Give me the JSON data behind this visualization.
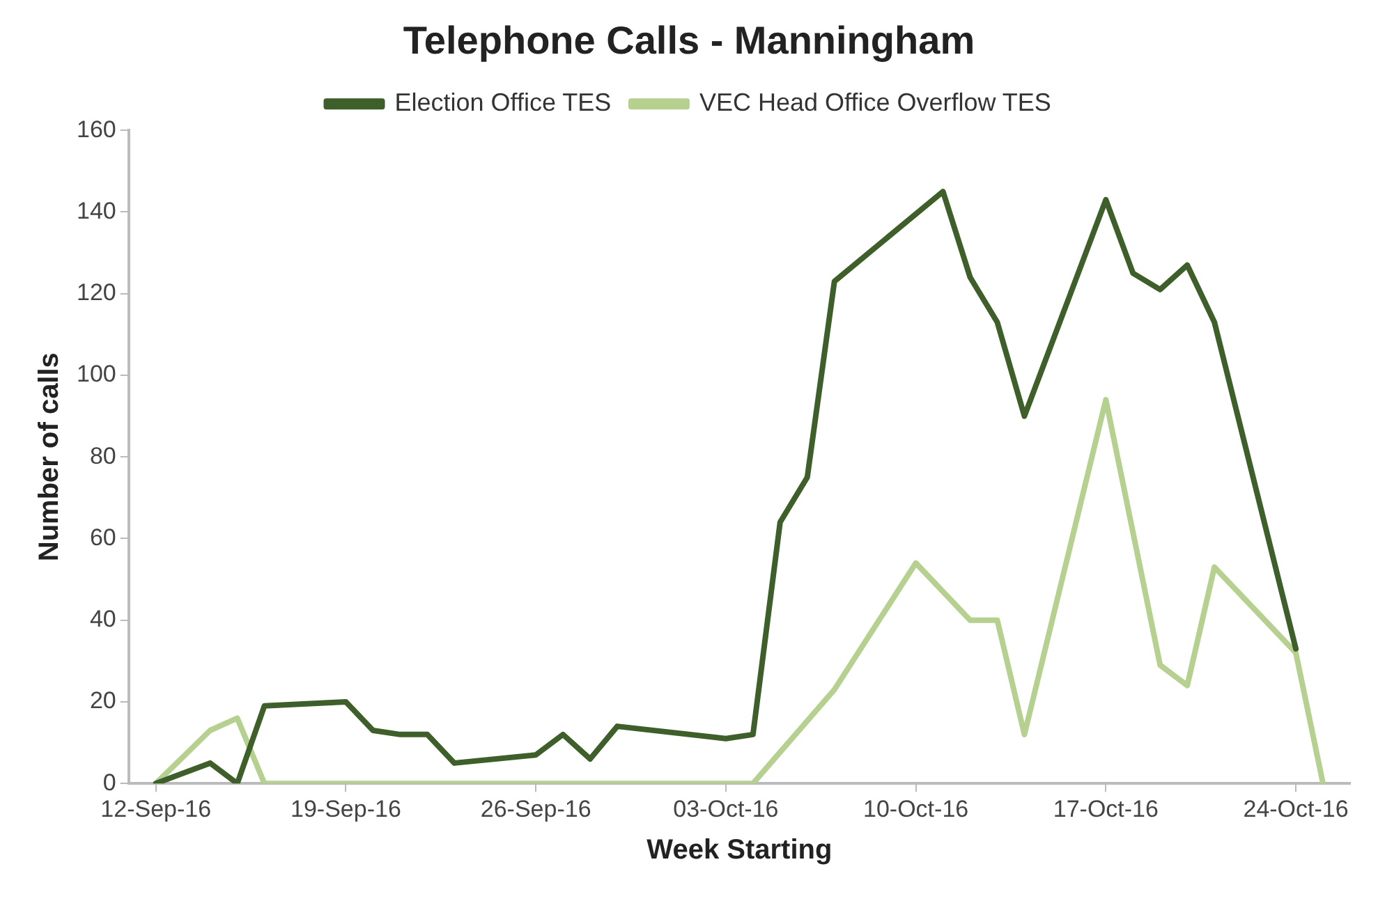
{
  "chart_data": {
    "type": "line",
    "title": "Telephone Calls - Manningham",
    "xlabel": "Week Starting",
    "ylabel": "Number of calls",
    "xlim": [
      "--09-11",
      "--10-26"
    ],
    "xticks": [
      {
        "value": "--09-12",
        "label": "12-Sep-16"
      },
      {
        "value": "--09-19",
        "label": "19-Sep-16"
      },
      {
        "value": "--09-26",
        "label": "26-Sep-16"
      },
      {
        "value": "--10-03",
        "label": "03-Oct-16"
      },
      {
        "value": "--10-10",
        "label": "10-Oct-16"
      },
      {
        "value": "--10-17",
        "label": "17-Oct-16"
      },
      {
        "value": "--10-24",
        "label": "24-Oct-16"
      }
    ],
    "ylim": [
      0,
      160
    ],
    "yticks": [
      0,
      20,
      40,
      60,
      80,
      100,
      120,
      140,
      160
    ],
    "grid": false,
    "legend": "top",
    "marker": "none",
    "line_style": "solid",
    "series": [
      {
        "name": "Election Office TES",
        "color": "#3e5f2a",
        "x": [
          "--09-12",
          "--09-14",
          "--09-15",
          "--09-16",
          "--09-19",
          "--09-20",
          "--09-21",
          "--09-22",
          "--09-23",
          "--09-26",
          "--09-27",
          "--09-28",
          "--09-29",
          "--10-03",
          "--10-04",
          "--10-05",
          "--10-06",
          "--10-07",
          "--10-11",
          "--10-12",
          "--10-13",
          "--10-14",
          "--10-17",
          "--10-18",
          "--10-19",
          "--10-20",
          "--10-21",
          "--10-24"
        ],
        "values": [
          0,
          5,
          0,
          19,
          20,
          13,
          12,
          12,
          5,
          7,
          12,
          6,
          14,
          11,
          12,
          64,
          75,
          123,
          145,
          124,
          113,
          90,
          143,
          125,
          121,
          127,
          113,
          33
        ]
      },
      {
        "name": "VEC Head Office Overflow TES",
        "color": "#b5d08f",
        "x": [
          "--09-12",
          "--09-14",
          "--09-15",
          "--09-16",
          "--10-04",
          "--10-07",
          "--10-10",
          "--10-12",
          "--10-13",
          "--10-14",
          "--10-17",
          "--10-19",
          "--10-20",
          "--10-21",
          "--10-24",
          "--10-25"
        ],
        "values": [
          0,
          13,
          16,
          0,
          0,
          23,
          54,
          40,
          40,
          12,
          94,
          29,
          24,
          53,
          32,
          0
        ]
      }
    ]
  }
}
